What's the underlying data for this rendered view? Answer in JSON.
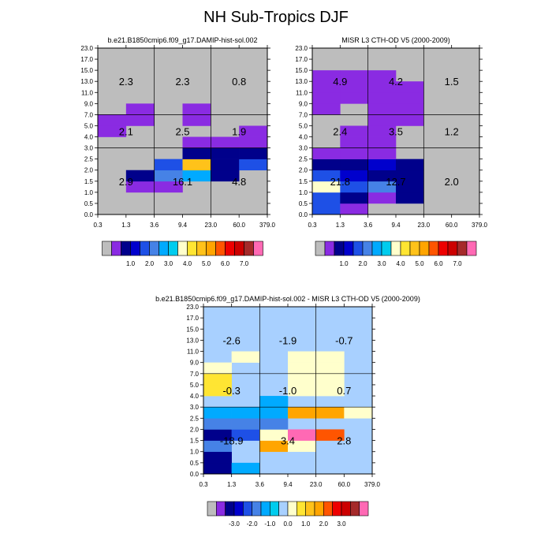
{
  "figure_title": "NH Sub-Tropics DJF",
  "colors": {
    "missing": "#bdbdbd",
    "frame": "#000000",
    "abs_palette": [
      "#bdbdbd",
      "#8a2be2",
      "#00008b",
      "#0000cd",
      "#1e50e6",
      "#4682e6",
      "#00aaff",
      "#00ccee",
      "#ffffcc",
      "#ffe533",
      "#ffc21a",
      "#ffa500",
      "#ff5500",
      "#ee0000",
      "#cc0000",
      "#a52a2a",
      "#ff69b4"
    ],
    "diff_palette": [
      "#bdbdbd",
      "#8a2be2",
      "#00008b",
      "#0000cd",
      "#1e50e6",
      "#4682e6",
      "#00aaff",
      "#00ccee",
      "#a8d0ff",
      "#ffffcc",
      "#ffe533",
      "#ffc21a",
      "#ffa500",
      "#ff5500",
      "#ee0000",
      "#cc0000",
      "#a52a2a",
      "#ff69b4"
    ]
  },
  "chart_data": [
    {
      "id": "model",
      "type": "heatmap",
      "title": "b.e21.B1850cmip6.f09_g17.DAMIP-hist-sol.002",
      "x_tick_labels": [
        "0.3",
        "1.3",
        "3.6",
        "9.4",
        "23.0",
        "60.0",
        "379.0"
      ],
      "y_tick_labels": [
        "0.0",
        "0.5",
        "1.0",
        "1.5",
        "2.0",
        "2.5",
        "3.0",
        "4.0",
        "5.0",
        "7.0",
        "9.0",
        "11.0",
        "13.0",
        "15.0",
        "17.0",
        "23.0"
      ],
      "cells": [
        {
          "col": 1,
          "row": 2,
          "c": 1
        },
        {
          "col": 2,
          "row": 2,
          "c": 1
        },
        {
          "col": 1,
          "row": 3,
          "c": 2
        },
        {
          "col": 2,
          "row": 3,
          "c": 5
        },
        {
          "col": 3,
          "row": 3,
          "c": 6
        },
        {
          "col": 4,
          "row": 3,
          "c": 2
        },
        {
          "col": 2,
          "row": 4,
          "c": 4
        },
        {
          "col": 3,
          "row": 4,
          "c": 10
        },
        {
          "col": 4,
          "row": 4,
          "c": 2
        },
        {
          "col": 5,
          "row": 4,
          "c": 4
        },
        {
          "col": 3,
          "row": 5,
          "c": 2
        },
        {
          "col": 4,
          "row": 5,
          "c": 2
        },
        {
          "col": 5,
          "row": 5,
          "c": 2
        },
        {
          "col": 3,
          "row": 6,
          "c": 1
        },
        {
          "col": 4,
          "row": 6,
          "c": 1
        },
        {
          "col": 5,
          "row": 6,
          "c": 1
        },
        {
          "col": 0,
          "row": 7,
          "c": 1
        },
        {
          "col": 5,
          "row": 7,
          "c": 1
        },
        {
          "col": 0,
          "row": 8,
          "c": 1
        },
        {
          "col": 1,
          "row": 8,
          "c": 1
        },
        {
          "col": 3,
          "row": 8,
          "c": 1
        },
        {
          "col": 1,
          "row": 9,
          "c": 1
        },
        {
          "col": 3,
          "row": 9,
          "c": 1
        }
      ],
      "region_values": {
        "high": [
          "2.3",
          "2.3",
          "0.8"
        ],
        "mid": [
          "2.1",
          "2.5",
          "1.9"
        ],
        "low": [
          "2.9",
          "16.1",
          "4.8"
        ]
      },
      "colorbar": {
        "palette": "abs_palette",
        "labels": [
          "1.0",
          "2.0",
          "3.0",
          "4.0",
          "5.0",
          "6.0",
          "7.0"
        ]
      }
    },
    {
      "id": "obs",
      "type": "heatmap",
      "title": "MISR L3 CTH-OD V5 (2000-2009)",
      "x_tick_labels": [
        "0.3",
        "1.3",
        "3.6",
        "9.4",
        "23.0",
        "60.0",
        "379.0"
      ],
      "y_tick_labels": [
        "0.0",
        "0.5",
        "1.0",
        "1.5",
        "2.0",
        "2.5",
        "3.0",
        "4.0",
        "5.0",
        "7.0",
        "9.0",
        "11.0",
        "13.0",
        "15.0",
        "17.0",
        "23.0"
      ],
      "cells": [
        {
          "col": 0,
          "row": 0,
          "c": 4
        },
        {
          "col": 1,
          "row": 0,
          "c": 1
        },
        {
          "col": 0,
          "row": 1,
          "c": 4
        },
        {
          "col": 1,
          "row": 1,
          "c": 2
        },
        {
          "col": 2,
          "row": 1,
          "c": 1
        },
        {
          "col": 3,
          "row": 1,
          "c": 2
        },
        {
          "col": 0,
          "row": 2,
          "c": 8
        },
        {
          "col": 1,
          "row": 2,
          "c": 4
        },
        {
          "col": 2,
          "row": 2,
          "c": 5
        },
        {
          "col": 3,
          "row": 2,
          "c": 2
        },
        {
          "col": 0,
          "row": 3,
          "c": 4
        },
        {
          "col": 1,
          "row": 3,
          "c": 3
        },
        {
          "col": 2,
          "row": 3,
          "c": 2
        },
        {
          "col": 3,
          "row": 3,
          "c": 2
        },
        {
          "col": 0,
          "row": 4,
          "c": 2
        },
        {
          "col": 1,
          "row": 4,
          "c": 2
        },
        {
          "col": 2,
          "row": 4,
          "c": 3
        },
        {
          "col": 3,
          "row": 4,
          "c": 2
        },
        {
          "col": 0,
          "row": 5,
          "c": 1
        },
        {
          "col": 1,
          "row": 5,
          "c": 1
        },
        {
          "col": 2,
          "row": 5,
          "c": 1
        },
        {
          "col": 1,
          "row": 6,
          "c": 1
        },
        {
          "col": 2,
          "row": 6,
          "c": 1
        },
        {
          "col": 1,
          "row": 7,
          "c": 1
        },
        {
          "col": 2,
          "row": 7,
          "c": 1
        },
        {
          "col": 2,
          "row": 8,
          "c": 1
        },
        {
          "col": 3,
          "row": 8,
          "c": 1
        },
        {
          "col": 0,
          "row": 9,
          "c": 1
        },
        {
          "col": 2,
          "row": 9,
          "c": 1
        },
        {
          "col": 3,
          "row": 9,
          "c": 1
        },
        {
          "col": 0,
          "row": 10,
          "c": 1
        },
        {
          "col": 1,
          "row": 10,
          "c": 1
        },
        {
          "col": 2,
          "row": 10,
          "c": 1
        },
        {
          "col": 3,
          "row": 10,
          "c": 1
        },
        {
          "col": 0,
          "row": 11,
          "c": 1
        },
        {
          "col": 1,
          "row": 11,
          "c": 1
        },
        {
          "col": 2,
          "row": 11,
          "c": 1
        },
        {
          "col": 3,
          "row": 11,
          "c": 1
        },
        {
          "col": 0,
          "row": 12,
          "c": 1
        },
        {
          "col": 1,
          "row": 12,
          "c": 1
        },
        {
          "col": 2,
          "row": 12,
          "c": 1
        }
      ],
      "region_values": {
        "high": [
          "4.9",
          "4.2",
          "1.5"
        ],
        "mid": [
          "2.4",
          "3.5",
          "1.2"
        ],
        "low": [
          "21.8",
          "12.7",
          "2.0"
        ]
      },
      "colorbar": {
        "palette": "abs_palette",
        "labels": [
          "1.0",
          "2.0",
          "3.0",
          "4.0",
          "5.0",
          "6.0",
          "7.0"
        ]
      }
    },
    {
      "id": "diff",
      "type": "heatmap",
      "title": "b.e21.B1850cmip6.f09_g17.DAMIP-hist-sol.002 - MISR L3 CTH-OD V5 (2000-2009)",
      "x_tick_labels": [
        "0.3",
        "1.3",
        "3.6",
        "9.4",
        "23.0",
        "60.0",
        "379.0"
      ],
      "y_tick_labels": [
        "0.0",
        "0.5",
        "1.0",
        "1.5",
        "2.0",
        "2.5",
        "3.0",
        "4.0",
        "5.0",
        "7.0",
        "9.0",
        "11.0",
        "13.0",
        "15.0",
        "17.0",
        "23.0"
      ],
      "background_c": 8,
      "cells": [
        {
          "col": 0,
          "row": 0,
          "c": 2
        },
        {
          "col": 1,
          "row": 0,
          "c": 6
        },
        {
          "col": 0,
          "row": 1,
          "c": 2
        },
        {
          "col": 0,
          "row": 2,
          "c": 5
        },
        {
          "col": 2,
          "row": 2,
          "c": 12
        },
        {
          "col": 3,
          "row": 2,
          "c": 9
        },
        {
          "col": 0,
          "row": 3,
          "c": 2
        },
        {
          "col": 1,
          "row": 3,
          "c": 4
        },
        {
          "col": 2,
          "row": 3,
          "c": 9
        },
        {
          "col": 3,
          "row": 3,
          "c": 17
        },
        {
          "col": 4,
          "row": 3,
          "c": 13
        },
        {
          "col": 0,
          "row": 4,
          "c": 5
        },
        {
          "col": 1,
          "row": 4,
          "c": 5
        },
        {
          "col": 2,
          "row": 4,
          "c": 5
        },
        {
          "col": 0,
          "row": 5,
          "c": 6
        },
        {
          "col": 1,
          "row": 5,
          "c": 6
        },
        {
          "col": 2,
          "row": 5,
          "c": 6
        },
        {
          "col": 3,
          "row": 5,
          "c": 12
        },
        {
          "col": 4,
          "row": 5,
          "c": 12
        },
        {
          "col": 5,
          "row": 5,
          "c": 9
        },
        {
          "col": 2,
          "row": 6,
          "c": 6
        },
        {
          "col": 0,
          "row": 7,
          "c": 10
        },
        {
          "col": 3,
          "row": 7,
          "c": 9
        },
        {
          "col": 4,
          "row": 7,
          "c": 9
        },
        {
          "col": 0,
          "row": 8,
          "c": 10
        },
        {
          "col": 3,
          "row": 8,
          "c": 9
        },
        {
          "col": 4,
          "row": 8,
          "c": 9
        },
        {
          "col": 0,
          "row": 9,
          "c": 9
        },
        {
          "col": 3,
          "row": 9,
          "c": 9
        },
        {
          "col": 4,
          "row": 9,
          "c": 9
        },
        {
          "col": 1,
          "row": 10,
          "c": 9
        },
        {
          "col": 3,
          "row": 10,
          "c": 9
        },
        {
          "col": 4,
          "row": 10,
          "c": 9
        }
      ],
      "region_values": {
        "high": [
          "-2.6",
          "-1.9",
          "-0.7"
        ],
        "mid": [
          "-0.3",
          "-1.0",
          "0.7"
        ],
        "low": [
          "-18.9",
          "3.4",
          "2.8"
        ]
      },
      "colorbar": {
        "palette": "diff_palette",
        "labels": [
          "-3.0",
          "-2.0",
          "-1.0",
          "0.0",
          "1.0",
          "2.0",
          "3.0"
        ]
      }
    }
  ]
}
